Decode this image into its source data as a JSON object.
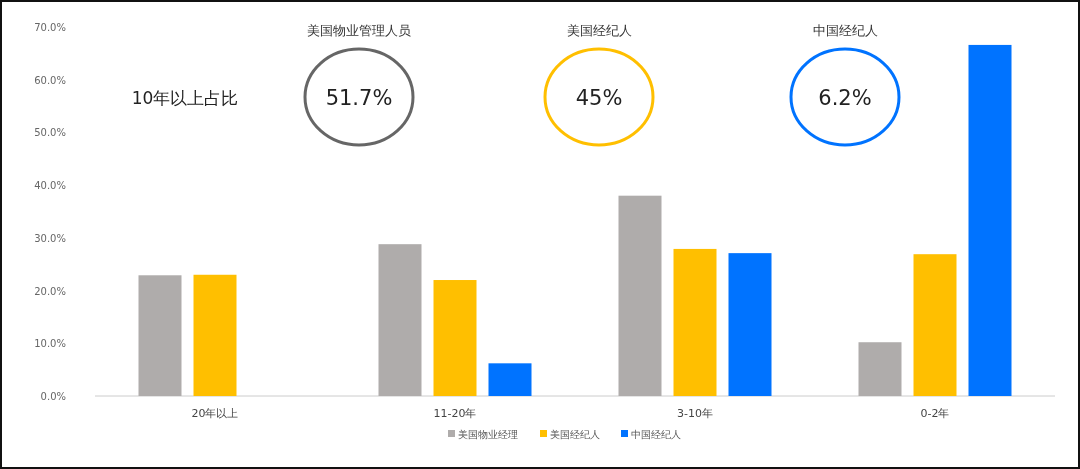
{
  "chart_data": {
    "type": "bar",
    "categories": [
      "20年以上",
      "11-20年",
      "3-10年",
      "0-2年"
    ],
    "series": [
      {
        "name": "美国物业经理",
        "color": "#afacab",
        "values": [
          22.9,
          28.8,
          38.0,
          10.2
        ]
      },
      {
        "name": "美国经纪人",
        "color": "#ffbf00",
        "values": [
          23.0,
          22.0,
          27.9,
          26.9
        ]
      },
      {
        "name": "中国经纪人",
        "color": "#0073ff",
        "values": [
          null,
          6.2,
          27.1,
          66.6
        ]
      }
    ],
    "ylim": [
      0,
      70
    ],
    "yticks": [
      {
        "value": 0,
        "label": "0.0%"
      },
      {
        "value": 10,
        "label": "10.0%"
      },
      {
        "value": 20,
        "label": "20.0%"
      },
      {
        "value": 30,
        "label": "30.0%"
      },
      {
        "value": 40,
        "label": "40.0%"
      },
      {
        "value": 50,
        "label": "50.0%"
      },
      {
        "value": 60,
        "label": "60.0%"
      },
      {
        "value": 70,
        "label": "70.0%"
      }
    ],
    "annotations": [
      "10年以上占比",
      "美国物业管理人员",
      "51.7%",
      "美国经纪人",
      "45%",
      "中国经纪人",
      "6.2%"
    ],
    "grid": false,
    "legend": "bottom"
  }
}
